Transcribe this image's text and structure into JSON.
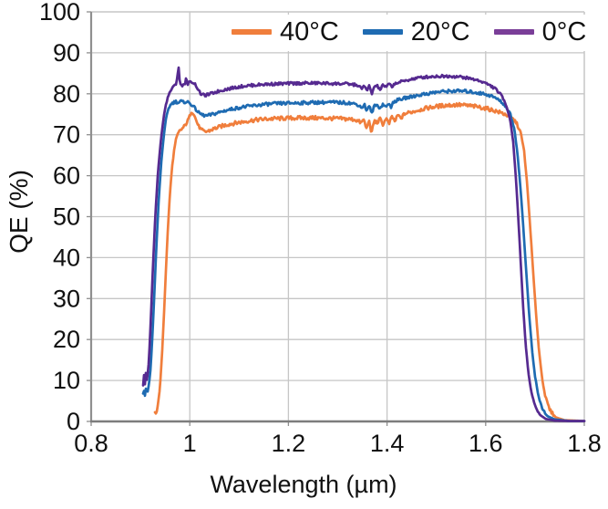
{
  "style": {
    "grid_color": "#c6c6c6",
    "axis_color": "#8f8f8f",
    "bottom_axis_color": "#7d7d7d",
    "text_color": "#111111",
    "background": "#ffffff"
  },
  "legend": {
    "items": [
      {
        "label": "40°C",
        "color": "#f07e3c"
      },
      {
        "label": "20°C",
        "color": "#1e6bb2"
      },
      {
        "label": "0°C",
        "color": "#7a3e98"
      }
    ]
  },
  "chart_data": {
    "type": "line",
    "title": "",
    "xlabel": "Wavelength (µm)",
    "ylabel": "QE (%)",
    "xlim": [
      0.8,
      1.8
    ],
    "ylim": [
      0,
      100
    ],
    "grid": true,
    "legend_position": "top-inside",
    "xticks": {
      "values": [
        0.8,
        1.0,
        1.2,
        1.4,
        1.6,
        1.8
      ],
      "labels": [
        "0.8",
        "1",
        "1.2",
        "1.4",
        "1.6",
        "1.8"
      ]
    },
    "yticks": {
      "values": [
        0,
        10,
        20,
        30,
        40,
        50,
        60,
        70,
        80,
        90,
        100
      ],
      "labels": [
        "0",
        "10",
        "20",
        "30",
        "40",
        "50",
        "60",
        "70",
        "80",
        "90",
        "100"
      ]
    },
    "vertical_gridlines": [
      1.0,
      1.2,
      1.4,
      1.6
    ],
    "horizontal_gridlines": [
      10,
      20,
      30,
      40,
      50,
      60,
      70,
      80,
      90
    ],
    "series": [
      {
        "name": "40°C",
        "color": "#f07e3c",
        "noise_amplitude": 0.5,
        "points": [
          [
            0.93,
            2.0
          ],
          [
            0.933,
            2.6
          ],
          [
            0.936,
            4.5
          ],
          [
            0.94,
            9.0
          ],
          [
            0.944,
            17.0
          ],
          [
            0.948,
            27.0
          ],
          [
            0.952,
            38.0
          ],
          [
            0.956,
            48.0
          ],
          [
            0.96,
            56.0
          ],
          [
            0.964,
            62.0
          ],
          [
            0.968,
            66.0
          ],
          [
            0.972,
            68.8
          ],
          [
            0.976,
            70.2
          ],
          [
            0.98,
            71.0
          ],
          [
            0.985,
            71.5
          ],
          [
            0.99,
            72.2
          ],
          [
            0.995,
            73.2
          ],
          [
            1.0,
            74.6
          ],
          [
            1.004,
            75.8
          ],
          [
            1.008,
            75.2
          ],
          [
            1.012,
            73.8
          ],
          [
            1.017,
            72.3
          ],
          [
            1.023,
            71.2
          ],
          [
            1.03,
            70.7
          ],
          [
            1.038,
            70.9
          ],
          [
            1.05,
            71.5
          ],
          [
            1.065,
            72.1
          ],
          [
            1.08,
            72.6
          ],
          [
            1.1,
            73.0
          ],
          [
            1.12,
            73.4
          ],
          [
            1.14,
            73.7
          ],
          [
            1.165,
            73.9
          ],
          [
            1.19,
            74.0
          ],
          [
            1.22,
            74.1
          ],
          [
            1.25,
            74.1
          ],
          [
            1.28,
            74.0
          ],
          [
            1.31,
            73.9
          ],
          [
            1.335,
            73.7
          ],
          [
            1.348,
            72.9
          ],
          [
            1.353,
            73.8
          ],
          [
            1.358,
            71.4
          ],
          [
            1.363,
            73.6
          ],
          [
            1.368,
            70.4
          ],
          [
            1.374,
            73.4
          ],
          [
            1.38,
            72.9
          ],
          [
            1.386,
            73.9
          ],
          [
            1.392,
            72.4
          ],
          [
            1.398,
            74.1
          ],
          [
            1.404,
            72.6
          ],
          [
            1.41,
            74.5
          ],
          [
            1.416,
            73.2
          ],
          [
            1.422,
            74.9
          ],
          [
            1.428,
            73.9
          ],
          [
            1.435,
            75.1
          ],
          [
            1.445,
            75.4
          ],
          [
            1.46,
            75.9
          ],
          [
            1.48,
            76.5
          ],
          [
            1.5,
            76.9
          ],
          [
            1.52,
            77.2
          ],
          [
            1.545,
            77.3
          ],
          [
            1.565,
            77.1
          ],
          [
            1.585,
            76.8
          ],
          [
            1.605,
            76.3
          ],
          [
            1.62,
            75.8
          ],
          [
            1.635,
            75.2
          ],
          [
            1.65,
            74.4
          ],
          [
            1.662,
            73.0
          ],
          [
            1.671,
            70.5
          ],
          [
            1.678,
            66.0
          ],
          [
            1.684,
            58.0
          ],
          [
            1.69,
            48.0
          ],
          [
            1.696,
            37.0
          ],
          [
            1.702,
            26.5
          ],
          [
            1.708,
            17.5
          ],
          [
            1.714,
            11.0
          ],
          [
            1.721,
            6.0
          ],
          [
            1.73,
            2.8
          ],
          [
            1.742,
            1.0
          ],
          [
            1.76,
            0.3
          ],
          [
            1.8,
            0.1
          ]
        ]
      },
      {
        "name": "20°C",
        "color": "#1e6bb2",
        "noise_amplitude": 0.4,
        "points": [
          [
            0.905,
            6.5
          ],
          [
            0.907,
            7.5
          ],
          [
            0.909,
            6.2
          ],
          [
            0.911,
            8.0
          ],
          [
            0.914,
            7.0
          ],
          [
            0.917,
            9.0
          ],
          [
            0.92,
            12.0
          ],
          [
            0.923,
            18.0
          ],
          [
            0.927,
            28.0
          ],
          [
            0.932,
            42.0
          ],
          [
            0.937,
            54.0
          ],
          [
            0.942,
            63.0
          ],
          [
            0.947,
            69.5
          ],
          [
            0.952,
            74.0
          ],
          [
            0.957,
            76.5
          ],
          [
            0.962,
            77.5
          ],
          [
            0.967,
            77.9
          ],
          [
            0.972,
            78.1
          ],
          [
            0.977,
            77.8
          ],
          [
            0.982,
            78.2
          ],
          [
            0.987,
            77.9
          ],
          [
            0.992,
            78.1
          ],
          [
            0.997,
            77.9
          ],
          [
            1.002,
            77.5
          ],
          [
            1.007,
            77.0
          ],
          [
            1.012,
            76.2
          ],
          [
            1.018,
            75.4
          ],
          [
            1.026,
            74.8
          ],
          [
            1.034,
            74.6
          ],
          [
            1.044,
            74.9
          ],
          [
            1.058,
            75.4
          ],
          [
            1.072,
            75.9
          ],
          [
            1.09,
            76.4
          ],
          [
            1.11,
            76.8
          ],
          [
            1.13,
            77.1
          ],
          [
            1.15,
            77.4
          ],
          [
            1.175,
            77.6
          ],
          [
            1.2,
            77.7
          ],
          [
            1.23,
            77.8
          ],
          [
            1.26,
            77.9
          ],
          [
            1.29,
            77.9
          ],
          [
            1.32,
            77.8
          ],
          [
            1.34,
            77.4
          ],
          [
            1.349,
            76.6
          ],
          [
            1.354,
            77.4
          ],
          [
            1.359,
            75.7
          ],
          [
            1.364,
            77.2
          ],
          [
            1.369,
            75.1
          ],
          [
            1.374,
            77.1
          ],
          [
            1.38,
            77.2
          ],
          [
            1.386,
            76.5
          ],
          [
            1.392,
            77.5
          ],
          [
            1.398,
            76.7
          ],
          [
            1.404,
            77.9
          ],
          [
            1.408,
            76.3
          ],
          [
            1.412,
            78.0
          ],
          [
            1.42,
            78.4
          ],
          [
            1.435,
            78.9
          ],
          [
            1.45,
            79.3
          ],
          [
            1.465,
            79.7
          ],
          [
            1.48,
            80.0
          ],
          [
            1.5,
            80.4
          ],
          [
            1.52,
            80.6
          ],
          [
            1.54,
            80.7
          ],
          [
            1.56,
            80.6
          ],
          [
            1.58,
            80.3
          ],
          [
            1.6,
            79.9
          ],
          [
            1.615,
            79.3
          ],
          [
            1.628,
            78.4
          ],
          [
            1.64,
            77.1
          ],
          [
            1.65,
            75.0
          ],
          [
            1.658,
            71.5
          ],
          [
            1.664,
            66.0
          ],
          [
            1.67,
            58.0
          ],
          [
            1.676,
            48.0
          ],
          [
            1.682,
            37.0
          ],
          [
            1.688,
            26.5
          ],
          [
            1.694,
            17.5
          ],
          [
            1.7,
            11.0
          ],
          [
            1.707,
            6.2
          ],
          [
            1.715,
            3.0
          ],
          [
            1.725,
            1.3
          ],
          [
            1.74,
            0.5
          ],
          [
            1.77,
            0.1
          ],
          [
            1.8,
            0.1
          ]
        ]
      },
      {
        "name": "0°C",
        "color": "#562a90",
        "noise_amplitude": 0.35,
        "points": [
          [
            0.905,
            8.0
          ],
          [
            0.907,
            11.5
          ],
          [
            0.909,
            9.0
          ],
          [
            0.911,
            12.0
          ],
          [
            0.913,
            10.0
          ],
          [
            0.916,
            13.0
          ],
          [
            0.918,
            17.0
          ],
          [
            0.921,
            25.0
          ],
          [
            0.925,
            37.0
          ],
          [
            0.93,
            50.0
          ],
          [
            0.935,
            60.0
          ],
          [
            0.94,
            67.0
          ],
          [
            0.945,
            72.5
          ],
          [
            0.95,
            76.5
          ],
          [
            0.955,
            79.0
          ],
          [
            0.96,
            80.5
          ],
          [
            0.964,
            81.3
          ],
          [
            0.968,
            81.8
          ],
          [
            0.972,
            82.5
          ],
          [
            0.975,
            84.0
          ],
          [
            0.977,
            87.3
          ],
          [
            0.979,
            83.5
          ],
          [
            0.982,
            82.0
          ],
          [
            0.986,
            82.2
          ],
          [
            0.99,
            82.4
          ],
          [
            0.993,
            84.0
          ],
          [
            0.995,
            82.3
          ],
          [
            1.0,
            82.8
          ],
          [
            1.004,
            83.0
          ],
          [
            1.008,
            82.6
          ],
          [
            1.012,
            82.2
          ],
          [
            1.016,
            81.2
          ],
          [
            1.022,
            80.0
          ],
          [
            1.03,
            79.6
          ],
          [
            1.04,
            79.9
          ],
          [
            1.055,
            80.5
          ],
          [
            1.07,
            81.0
          ],
          [
            1.09,
            81.5
          ],
          [
            1.11,
            81.9
          ],
          [
            1.13,
            82.1
          ],
          [
            1.15,
            82.3
          ],
          [
            1.17,
            82.4
          ],
          [
            1.2,
            82.5
          ],
          [
            1.23,
            82.6
          ],
          [
            1.26,
            82.6
          ],
          [
            1.29,
            82.5
          ],
          [
            1.32,
            82.4
          ],
          [
            1.34,
            82.1
          ],
          [
            1.349,
            81.2
          ],
          [
            1.354,
            82.2
          ],
          [
            1.359,
            80.6
          ],
          [
            1.364,
            82.0
          ],
          [
            1.369,
            79.9
          ],
          [
            1.374,
            81.8
          ],
          [
            1.38,
            81.9
          ],
          [
            1.386,
            81.0
          ],
          [
            1.392,
            82.2
          ],
          [
            1.398,
            81.6
          ],
          [
            1.404,
            82.4
          ],
          [
            1.41,
            81.8
          ],
          [
            1.416,
            82.5
          ],
          [
            1.425,
            82.8
          ],
          [
            1.44,
            83.3
          ],
          [
            1.455,
            83.7
          ],
          [
            1.47,
            84.0
          ],
          [
            1.49,
            84.2
          ],
          [
            1.51,
            84.3
          ],
          [
            1.53,
            84.3
          ],
          [
            1.55,
            84.1
          ],
          [
            1.57,
            83.7
          ],
          [
            1.59,
            83.1
          ],
          [
            1.605,
            82.3
          ],
          [
            1.62,
            81.2
          ],
          [
            1.632,
            79.6
          ],
          [
            1.642,
            77.2
          ],
          [
            1.65,
            73.5
          ],
          [
            1.656,
            68.0
          ],
          [
            1.661,
            60.0
          ],
          [
            1.666,
            50.0
          ],
          [
            1.671,
            39.0
          ],
          [
            1.676,
            28.0
          ],
          [
            1.681,
            19.0
          ],
          [
            1.686,
            12.5
          ],
          [
            1.692,
            7.5
          ],
          [
            1.7,
            3.8
          ],
          [
            1.71,
            1.6
          ],
          [
            1.722,
            0.6
          ],
          [
            1.74,
            0.2
          ],
          [
            1.77,
            0.1
          ],
          [
            1.8,
            0.1
          ]
        ]
      }
    ]
  }
}
